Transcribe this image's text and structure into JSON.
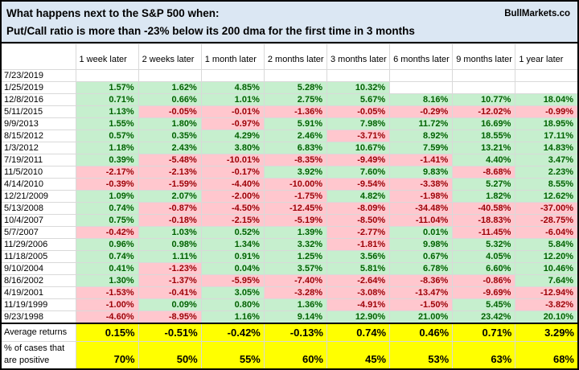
{
  "header": {
    "line1": "What happens next to the S&P 500 when:",
    "line2": "Put/Call ratio is more than -23% below its 200 dma for the first time in 3 months",
    "brand": "BullMarkets.co"
  },
  "colors": {
    "title_bg": "#dbe7f3",
    "positive_bg": "#c6efce",
    "positive_text": "#006100",
    "negative_bg": "#ffc7ce",
    "negative_text": "#9c0006",
    "summary_bg": "#ffff00"
  },
  "chart_data": {
    "type": "table",
    "title": "What happens next to the S&P 500 when: Put/Call ratio is more than -23% below its 200 dma for the first time in 3 months",
    "columns": [
      "1 week later",
      "2 weeks later",
      "1 month later",
      "2 months later",
      "3 months later",
      "6 months later",
      "9 months later",
      "1 year later"
    ],
    "rows": [
      {
        "date": "7/23/2019",
        "values": [
          "",
          "",
          "",
          "",
          "",
          "",
          "",
          ""
        ]
      },
      {
        "date": "1/25/2019",
        "values": [
          "1.57%",
          "1.62%",
          "4.85%",
          "5.28%",
          "10.32%",
          "",
          "",
          ""
        ]
      },
      {
        "date": "12/8/2016",
        "values": [
          "0.71%",
          "0.66%",
          "1.01%",
          "2.75%",
          "5.67%",
          "8.16%",
          "10.77%",
          "18.04%"
        ]
      },
      {
        "date": "5/11/2015",
        "values": [
          "1.13%",
          "-0.05%",
          "-0.01%",
          "-1.36%",
          "-0.05%",
          "-0.29%",
          "-12.02%",
          "-0.99%"
        ]
      },
      {
        "date": "9/9/2013",
        "values": [
          "1.55%",
          "1.80%",
          "-0.97%",
          "5.91%",
          "7.98%",
          "11.72%",
          "16.69%",
          "18.95%"
        ]
      },
      {
        "date": "8/15/2012",
        "values": [
          "0.57%",
          "0.35%",
          "4.29%",
          "2.46%",
          "-3.71%",
          "8.92%",
          "18.55%",
          "17.11%"
        ]
      },
      {
        "date": "1/3/2012",
        "values": [
          "1.18%",
          "2.43%",
          "3.80%",
          "6.83%",
          "10.67%",
          "7.59%",
          "13.21%",
          "14.83%"
        ]
      },
      {
        "date": "7/19/2011",
        "values": [
          "0.39%",
          "-5.48%",
          "-10.01%",
          "-8.35%",
          "-9.49%",
          "-1.41%",
          "4.40%",
          "3.47%"
        ]
      },
      {
        "date": "11/5/2010",
        "values": [
          "-2.17%",
          "-2.13%",
          "-0.17%",
          "3.92%",
          "7.60%",
          "9.83%",
          "-8.68%",
          "2.23%"
        ]
      },
      {
        "date": "4/14/2010",
        "values": [
          "-0.39%",
          "-1.59%",
          "-4.40%",
          "-10.00%",
          "-9.54%",
          "-3.38%",
          "5.27%",
          "8.55%"
        ]
      },
      {
        "date": "12/21/2009",
        "values": [
          "1.09%",
          "2.07%",
          "-2.00%",
          "-1.75%",
          "4.82%",
          "-1.98%",
          "1.82%",
          "12.62%"
        ]
      },
      {
        "date": "5/13/2008",
        "values": [
          "0.74%",
          "-0.87%",
          "-4.50%",
          "-12.45%",
          "-8.09%",
          "-34.48%",
          "-40.58%",
          "-37.00%"
        ]
      },
      {
        "date": "10/4/2007",
        "values": [
          "0.75%",
          "-0.18%",
          "-2.15%",
          "-5.19%",
          "-8.50%",
          "-11.04%",
          "-18.83%",
          "-28.75%"
        ]
      },
      {
        "date": "5/7/2007",
        "values": [
          "-0.42%",
          "1.03%",
          "0.52%",
          "1.39%",
          "-2.77%",
          "0.01%",
          "-11.45%",
          "-6.04%"
        ]
      },
      {
        "date": "11/29/2006",
        "values": [
          "0.96%",
          "0.98%",
          "1.34%",
          "3.32%",
          "-1.81%",
          "9.98%",
          "5.32%",
          "5.84%"
        ]
      },
      {
        "date": "11/18/2005",
        "values": [
          "0.74%",
          "1.11%",
          "0.91%",
          "1.25%",
          "3.56%",
          "0.67%",
          "4.05%",
          "12.20%"
        ]
      },
      {
        "date": "9/10/2004",
        "values": [
          "0.41%",
          "-1.23%",
          "0.04%",
          "3.57%",
          "5.81%",
          "6.78%",
          "6.60%",
          "10.46%"
        ]
      },
      {
        "date": "8/16/2002",
        "values": [
          "1.30%",
          "-1.37%",
          "-5.95%",
          "-7.40%",
          "-2.64%",
          "-8.36%",
          "-0.86%",
          "7.64%"
        ]
      },
      {
        "date": "4/19/2001",
        "values": [
          "-1.53%",
          "-0.41%",
          "3.05%",
          "-3.28%",
          "-3.08%",
          "-13.47%",
          "-9.69%",
          "-12.94%"
        ]
      },
      {
        "date": "11/19/1999",
        "values": [
          "-1.00%",
          "0.09%",
          "0.80%",
          "1.36%",
          "-4.91%",
          "-1.50%",
          "5.45%",
          "-3.82%"
        ]
      },
      {
        "date": "9/23/1998",
        "values": [
          "-4.60%",
          "-8.95%",
          "1.16%",
          "9.14%",
          "12.90%",
          "21.00%",
          "23.42%",
          "20.10%"
        ]
      }
    ],
    "summary": {
      "average_label": "Average returns",
      "average_values": [
        "0.15%",
        "-0.51%",
        "-0.42%",
        "-0.13%",
        "0.74%",
        "0.46%",
        "0.71%",
        "3.29%"
      ],
      "positive_label": "% of cases that are positive",
      "positive_values": [
        "70%",
        "50%",
        "55%",
        "60%",
        "45%",
        "53%",
        "63%",
        "68%"
      ]
    }
  }
}
